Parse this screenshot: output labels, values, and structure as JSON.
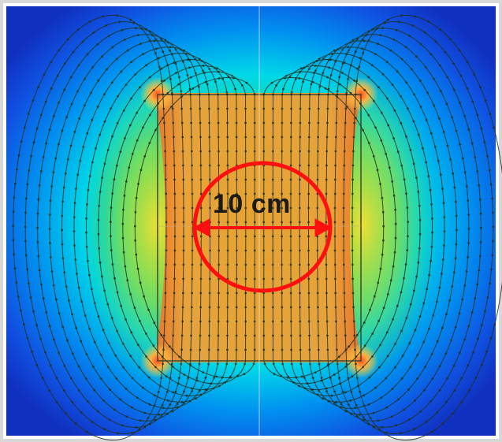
{
  "figure": {
    "diameter_label": "10 cm",
    "colors": {
      "background_outer": "#1030c0",
      "field_low": "#00c8ff",
      "field_mid": "#10d060",
      "field_high": "#f0e020",
      "field_peak": "#f09030",
      "circle": "#ff1010",
      "field_lines": "#203020",
      "frame": "#d0d0d0"
    },
    "icons": [
      "field-line-pattern",
      "measurement-circle",
      "double-arrow"
    ]
  }
}
